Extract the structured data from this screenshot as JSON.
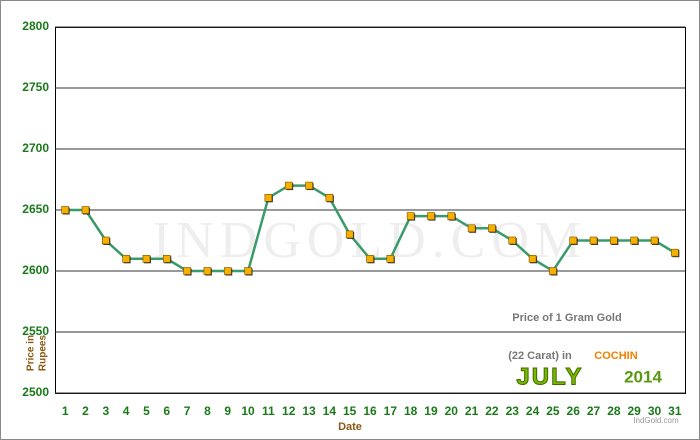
{
  "chart_data": {
    "type": "line",
    "categories": [
      "1",
      "2",
      "3",
      "4",
      "5",
      "6",
      "7",
      "8",
      "9",
      "10",
      "11",
      "12",
      "13",
      "14",
      "15",
      "16",
      "17",
      "18",
      "19",
      "20",
      "21",
      "22",
      "23",
      "24",
      "25",
      "26",
      "27",
      "28",
      "29",
      "30",
      "31"
    ],
    "values": [
      2650,
      2650,
      2625,
      2610,
      2610,
      2610,
      2600,
      2600,
      2600,
      2600,
      2660,
      2670,
      2670,
      2660,
      2630,
      2610,
      2610,
      2645,
      2645,
      2645,
      2635,
      2635,
      2625,
      2610,
      2600,
      2625,
      2625,
      2625,
      2625,
      2625,
      2615
    ],
    "color": "#3a9a6a",
    "marker_color": "#f5b000",
    "ylim": [
      2500,
      2800
    ],
    "yticks": [
      2500,
      2550,
      2600,
      2650,
      2700,
      2750,
      2800
    ],
    "grid": true,
    "x_label": "Date",
    "y_label": [
      "Price in",
      "Rupees"
    ],
    "watermark": "INDGOLD.COM",
    "caption": {
      "line1": "Price of 1 Gram Gold",
      "line2": "(22 Carat) in",
      "city": "COCHIN",
      "month": "JULY",
      "year": "2014",
      "site": "IndGold.com"
    }
  }
}
